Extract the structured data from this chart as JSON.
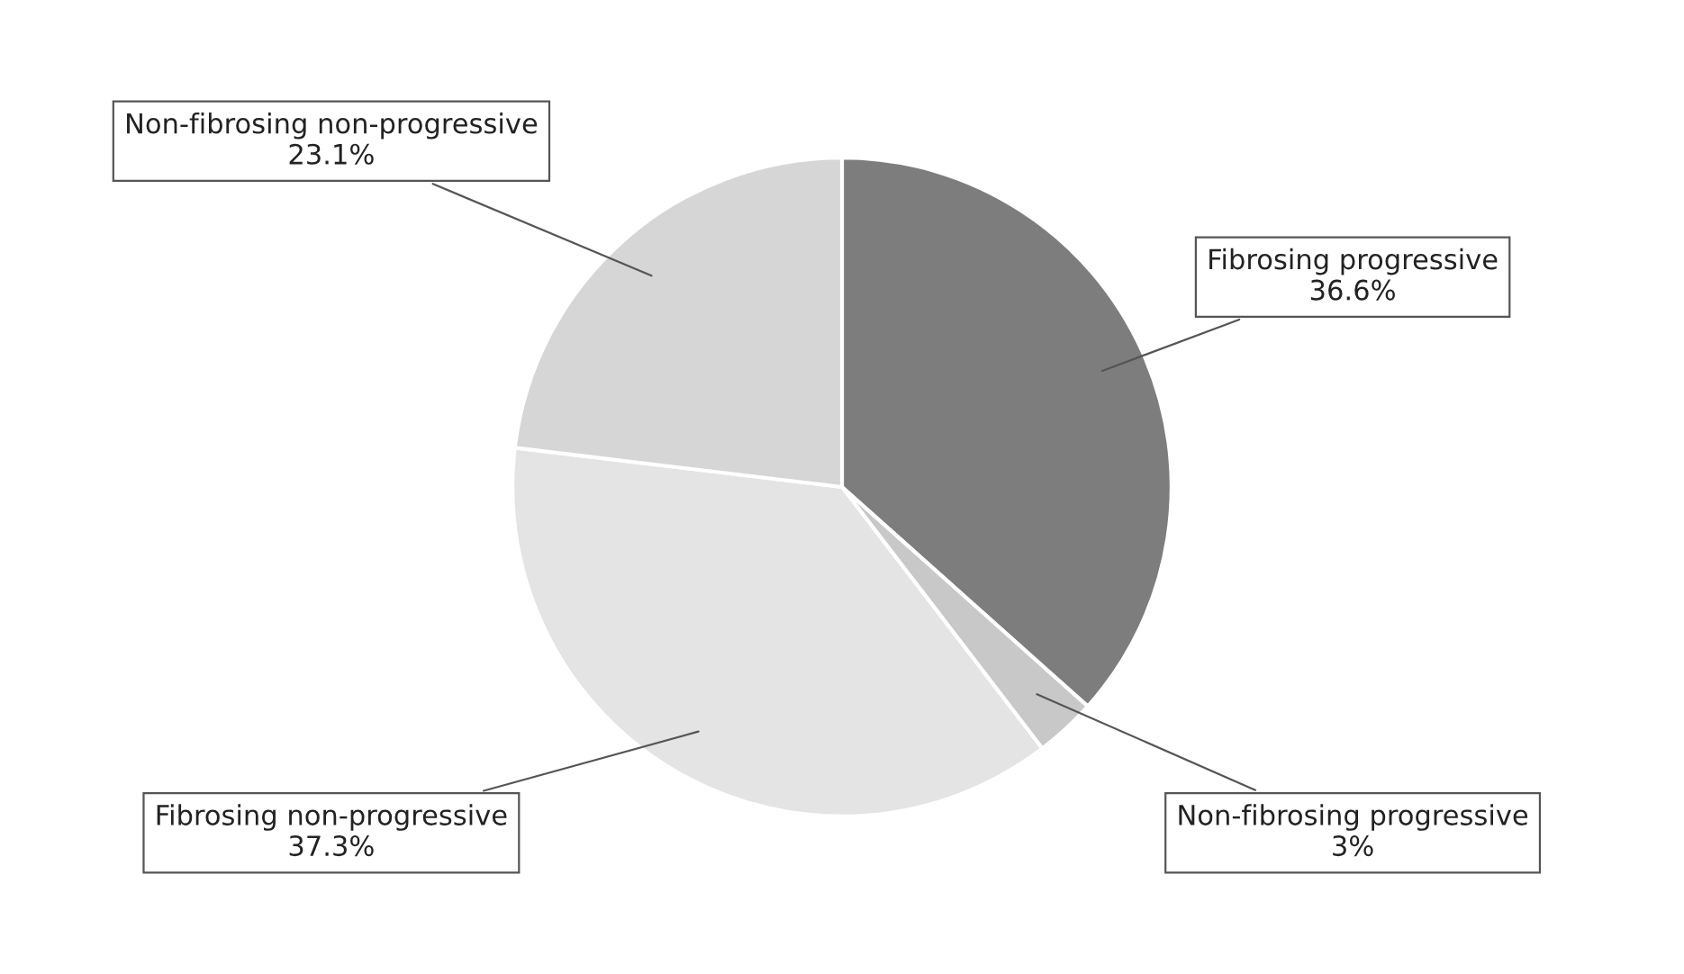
{
  "chart_data": {
    "type": "pie",
    "categories": [
      "Fibrosing progressive",
      "Non-fibrosing progressive",
      "Fibrosing non-progressive",
      "Non-fibrosing non-progressive"
    ],
    "values": [
      36.6,
      3,
      37.3,
      23.1
    ],
    "value_labels": [
      "36.6%",
      "3%",
      "37.3%",
      "23.1%"
    ],
    "colors": [
      "#7d7d7d",
      "#c8c8c8",
      "#e4e4e4",
      "#d6d6d6"
    ]
  }
}
